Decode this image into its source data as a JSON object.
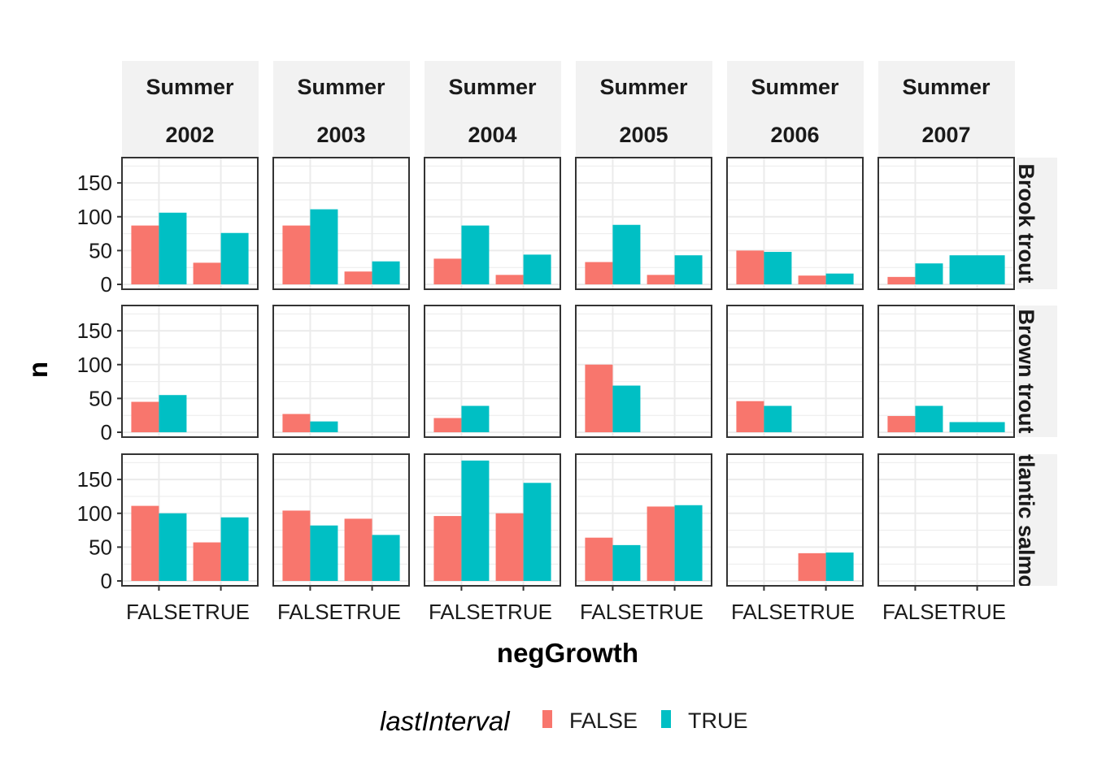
{
  "chart_data": {
    "type": "bar",
    "facet_columns": [
      "Summer\n\n2002",
      "Summer\n\n2003",
      "Summer\n\n2004",
      "Summer\n\n2005",
      "Summer\n\n2006",
      "Summer\n\n2007"
    ],
    "facet_rows": [
      "Brook trout",
      "Brown trout",
      "Atlantic salmon"
    ],
    "categories": [
      "FALSE",
      "TRUE"
    ],
    "xlabel": "negGrowth",
    "ylabel": "n",
    "ylim": [
      0,
      185
    ],
    "yticks": [
      0,
      50,
      100,
      150
    ],
    "grid": true,
    "legend": {
      "title": "lastInterval",
      "position": "bottom",
      "entries": [
        {
          "name": "FALSE",
          "color": "#F8766D"
        },
        {
          "name": "TRUE",
          "color": "#00BFC4"
        }
      ]
    },
    "panels": [
      [
        {
          "FALSE": [
            87,
            106
          ],
          "TRUE": [
            32,
            76
          ]
        },
        {
          "FALSE": [
            87,
            111
          ],
          "TRUE": [
            19,
            34
          ]
        },
        {
          "FALSE": [
            38,
            87
          ],
          "TRUE": [
            14,
            44
          ]
        },
        {
          "FALSE": [
            33,
            88
          ],
          "TRUE": [
            14,
            43
          ]
        },
        {
          "FALSE": [
            50,
            48
          ],
          "TRUE": [
            13,
            16
          ]
        },
        {
          "FALSE": [
            11,
            31
          ],
          "TRUE": [
            null,
            43
          ],
          "TRUE_dodge": "single"
        }
      ],
      [
        {
          "FALSE": [
            45,
            55
          ],
          "TRUE": [
            null,
            null
          ]
        },
        {
          "FALSE": [
            27,
            16
          ],
          "TRUE": [
            null,
            null
          ]
        },
        {
          "FALSE": [
            21,
            39
          ],
          "TRUE": [
            null,
            null
          ]
        },
        {
          "FALSE": [
            100,
            69
          ],
          "TRUE": [
            null,
            null
          ]
        },
        {
          "FALSE": [
            46,
            39
          ],
          "TRUE": [
            null,
            null
          ]
        },
        {
          "FALSE": [
            24,
            39
          ],
          "TRUE": [
            null,
            15
          ],
          "TRUE_dodge": "single"
        }
      ],
      [
        {
          "FALSE": [
            111,
            100
          ],
          "TRUE": [
            57,
            94
          ]
        },
        {
          "FALSE": [
            104,
            82
          ],
          "TRUE": [
            92,
            68
          ]
        },
        {
          "FALSE": [
            96,
            178
          ],
          "TRUE": [
            100,
            145
          ]
        },
        {
          "FALSE": [
            64,
            53
          ],
          "TRUE": [
            110,
            112
          ]
        },
        {
          "FALSE": [
            null,
            null
          ],
          "TRUE": [
            41,
            42
          ]
        },
        {
          "FALSE": [
            null,
            null
          ],
          "TRUE": [
            null,
            null
          ]
        }
      ]
    ]
  }
}
